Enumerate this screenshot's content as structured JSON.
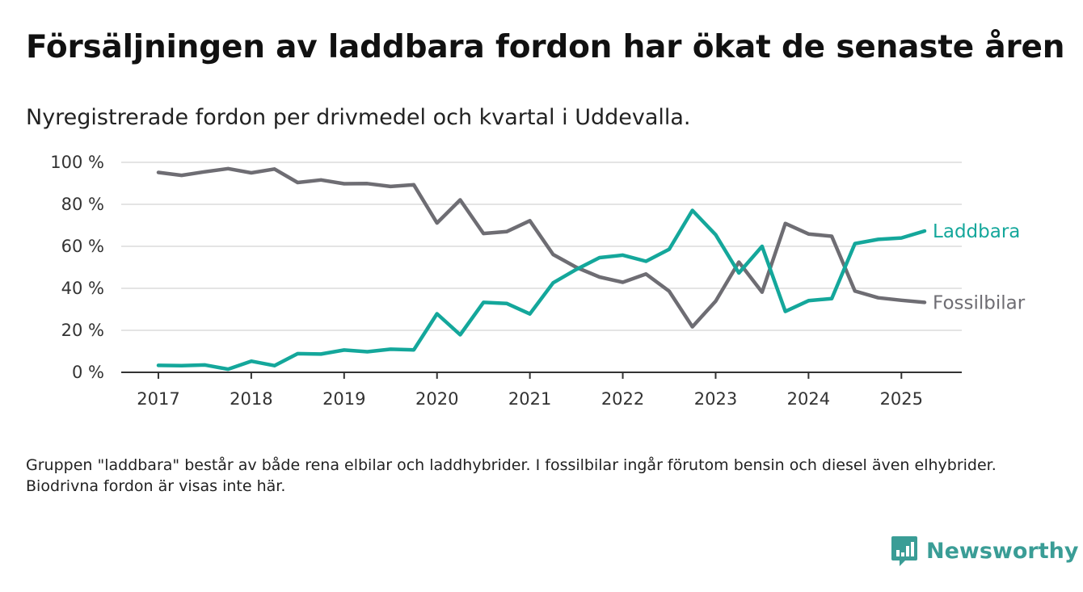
{
  "title": "Försäljningen av laddbara fordon har ökat de senaste åren",
  "subtitle": "Nyregistrerade fordon per drivmedel och kvartal i Uddevalla.",
  "footnote": "Gruppen \"laddbara\" består av både rena elbilar och laddhybrider. I fossilbilar ingår förutom bensin och diesel även elhybrider. Biodrivna fordon är visas inte här.",
  "logo": {
    "text": "Newsworthy",
    "icon": "newsworthy-logo-icon",
    "color": "#3a9d96"
  },
  "chart_data": {
    "type": "line",
    "x": [
      2017.0,
      2017.25,
      2017.5,
      2017.75,
      2018.0,
      2018.25,
      2018.5,
      2018.75,
      2019.0,
      2019.25,
      2019.5,
      2019.75,
      2020.0,
      2020.25,
      2020.5,
      2020.75,
      2021.0,
      2021.25,
      2021.5,
      2021.75,
      2022.0,
      2022.25,
      2022.5,
      2022.75,
      2023.0,
      2023.25,
      2023.5,
      2023.75,
      2024.0,
      2024.25,
      2024.5,
      2024.75,
      2025.0,
      2025.25
    ],
    "xticks": [
      2017,
      2018,
      2019,
      2020,
      2021,
      2022,
      2023,
      2024,
      2025
    ],
    "xtick_labels": [
      "2017",
      "2018",
      "2019",
      "2020",
      "2021",
      "2022",
      "2023",
      "2024",
      "2025"
    ],
    "xlim": [
      2016.6,
      2025.65
    ],
    "ylim": [
      0,
      100
    ],
    "yticks": [
      0,
      20,
      40,
      60,
      80,
      100
    ],
    "ytick_labels": [
      "0 %",
      "20 %",
      "40 %",
      "60 %",
      "80 %",
      "100 %"
    ],
    "grid": true,
    "legend": "direct labels at line ends",
    "series": [
      {
        "name": "Laddbara",
        "color": "#14a79b",
        "values": [
          3.3,
          3.2,
          3.5,
          1.5,
          5.3,
          3.2,
          8.9,
          8.7,
          10.6,
          9.8,
          11.0,
          10.7,
          27.9,
          17.9,
          33.3,
          32.8,
          27.8,
          42.6,
          49.0,
          54.6,
          55.8,
          52.9,
          58.6,
          77.1,
          65.5,
          47.3,
          60.0,
          29.0,
          34.1,
          35.1,
          61.3,
          63.3,
          64.0,
          67.3
        ]
      },
      {
        "name": "Fossilbilar",
        "color": "#6e6d73",
        "values": [
          95.2,
          93.8,
          95.5,
          97.0,
          95.0,
          96.8,
          90.4,
          91.6,
          89.8,
          89.9,
          88.5,
          89.3,
          71.1,
          82.1,
          66.1,
          67.0,
          72.2,
          56.1,
          50.0,
          45.4,
          42.9,
          46.8,
          38.6,
          21.7,
          33.9,
          52.5,
          38.2,
          70.9,
          65.9,
          64.8,
          38.7,
          35.5,
          34.3,
          33.3
        ]
      }
    ]
  }
}
